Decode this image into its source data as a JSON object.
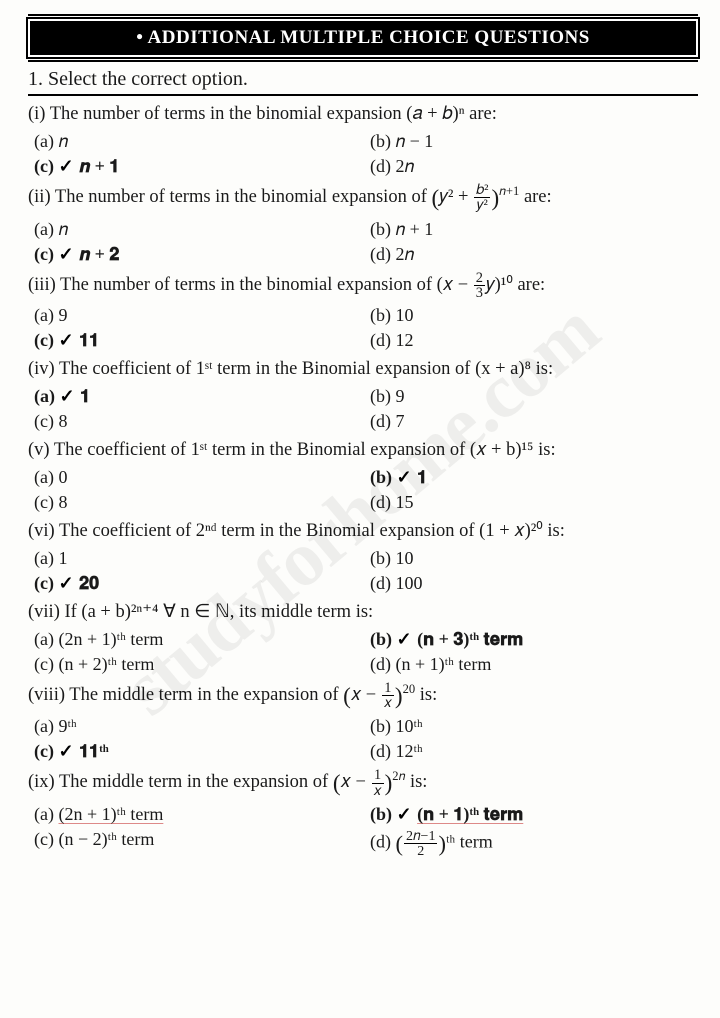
{
  "banner": "• ADDITIONAL MULTIPLE CHOICE QUESTIONS",
  "instruction": "1. Select the correct option.",
  "watermark": "studyforhome.com",
  "questions": [
    {
      "num": "(i)",
      "text": "The number of terms in the binomial expansion (𝑎 + 𝑏)ⁿ are:",
      "opts": [
        {
          "l": "(a)",
          "t": "𝑛",
          "c": false
        },
        {
          "l": "(b)",
          "t": "𝑛 − 1",
          "c": false
        },
        {
          "l": "(c)",
          "t": "𝒏 + 𝟏",
          "c": true
        },
        {
          "l": "(d)",
          "t": "2𝑛",
          "c": false
        }
      ]
    },
    {
      "num": "(ii)",
      "text_pre": "The number of terms in the binomial expansion of ",
      "text_post": " are:",
      "expr": {
        "type": "bigparen_frac",
        "outer_l": "𝑦² + ",
        "frac_n": "𝑏²",
        "frac_d": "𝑦²",
        "sup": "𝑛+1"
      },
      "opts": [
        {
          "l": "(a)",
          "t": "𝑛",
          "c": false
        },
        {
          "l": "(b)",
          "t": "𝑛 + 1",
          "c": false
        },
        {
          "l": "(c)",
          "t": "𝒏 + 𝟐",
          "c": true
        },
        {
          "l": "(d)",
          "t": "2𝑛",
          "c": false
        }
      ]
    },
    {
      "num": "(iii)",
      "text_pre": "The number of terms in the binomial expansion of (𝑥 − ",
      "text_post": "𝑦)¹⁰ are:",
      "expr": {
        "type": "frac",
        "n": "2",
        "d": "3"
      },
      "opts": [
        {
          "l": "(a)",
          "t": "9",
          "c": false
        },
        {
          "l": "(b)",
          "t": "10",
          "c": false
        },
        {
          "l": "(c)",
          "t": "𝟏𝟏",
          "c": true
        },
        {
          "l": "(d)",
          "t": "12",
          "c": false
        }
      ]
    },
    {
      "num": "(iv)",
      "text": "The coefficient of 1ˢᵗ term in the Binomial expansion of (x + a)⁸ is:",
      "opts": [
        {
          "l": "(a)",
          "t": "𝟏",
          "c": true
        },
        {
          "l": "(b)",
          "t": "9",
          "c": false
        },
        {
          "l": "(c)",
          "t": "8",
          "c": false
        },
        {
          "l": "(d)",
          "t": "7",
          "c": false
        }
      ]
    },
    {
      "num": "(v)",
      "text": "The coefficient of 1ˢᵗ term in the Binomial expansion of (𝑥 + b)¹⁵ is:",
      "opts": [
        {
          "l": "(a)",
          "t": "0",
          "c": false
        },
        {
          "l": "(b)",
          "t": "𝟏",
          "c": true
        },
        {
          "l": "(c)",
          "t": "8",
          "c": false
        },
        {
          "l": "(d)",
          "t": "15",
          "c": false
        }
      ]
    },
    {
      "num": "(vi)",
      "text": "The coefficient of 2ⁿᵈ term in the Binomial expansion of (1 + 𝑥)²⁰ is:",
      "opts": [
        {
          "l": "(a)",
          "t": "1",
          "c": false
        },
        {
          "l": "(b)",
          "t": "10",
          "c": false
        },
        {
          "l": "(c)",
          "t": "𝟐𝟎",
          "c": true
        },
        {
          "l": "(d)",
          "t": "100",
          "c": false
        }
      ]
    },
    {
      "num": "(vii)",
      "text": "If (a + b)²ⁿ⁺⁴  ∀ n ∈ ℕ, its middle term is:",
      "opts": [
        {
          "l": "(a)",
          "t": "(2n + 1)ᵗʰ term",
          "c": false
        },
        {
          "l": "(b)",
          "t": "(𝐧 + 𝟑)ᵗʰ 𝐭𝐞𝐫𝐦",
          "c": true
        },
        {
          "l": "(c)",
          "t": "(n + 2)ᵗʰ term",
          "c": false
        },
        {
          "l": "(d)",
          "t": "(n + 1)ᵗʰ term",
          "c": false
        }
      ]
    },
    {
      "num": "(viii)",
      "text_pre": "The middle term in the expansion of ",
      "text_post": " is:",
      "expr": {
        "type": "bigparen_frac",
        "outer_l": "𝑥 − ",
        "frac_n": "1",
        "frac_d": "𝑥",
        "sup": "20"
      },
      "opts": [
        {
          "l": "(a)",
          "t": "9ᵗʰ",
          "c": false
        },
        {
          "l": "(b)",
          "t": "10ᵗʰ",
          "c": false
        },
        {
          "l": "(c)",
          "t": "𝟏𝟏ᵗʰ",
          "c": true
        },
        {
          "l": "(d)",
          "t": "12ᵗʰ",
          "c": false
        }
      ]
    },
    {
      "num": "(ix)",
      "text_pre": "The middle term in the expansion of ",
      "text_post": " is:",
      "expr": {
        "type": "bigparen_frac",
        "outer_l": "𝑥 − ",
        "frac_n": "1",
        "frac_d": "𝑥",
        "sup": "2𝑛"
      },
      "opts": [
        {
          "l": "(a)",
          "t": "(2n + 1)ᵗʰ term",
          "c": false,
          "u": true
        },
        {
          "l": "(b)",
          "t": "(𝐧 + 𝟏)ᵗʰ 𝐭𝐞𝐫𝐦",
          "c": true,
          "u": true
        },
        {
          "l": "(c)",
          "t": "(n − 2)ᵗʰ term",
          "c": false
        },
        {
          "l": "(d)",
          "html": true,
          "frac_n": "2𝑛−1",
          "frac_d": "2",
          "suffix": "ᵗʰ term",
          "c": false
        }
      ]
    }
  ]
}
